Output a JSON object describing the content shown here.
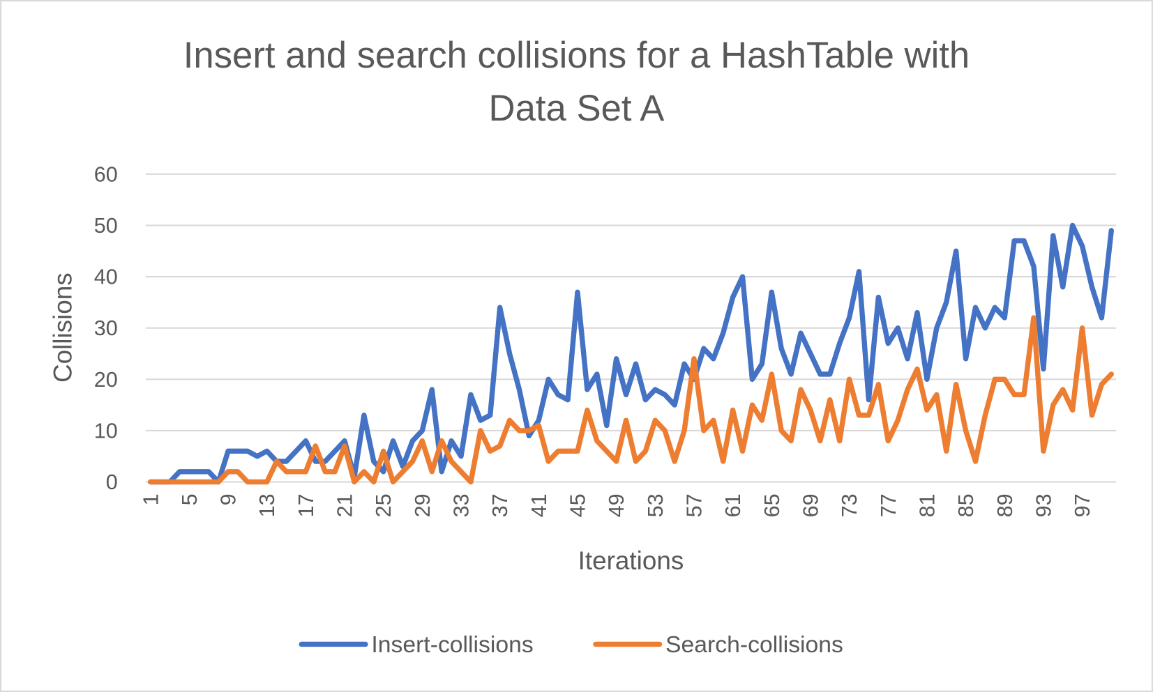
{
  "chart_data": {
    "type": "line",
    "title": [
      "Insert and search collisions for a HashTable with",
      "Data Set A"
    ],
    "x_label": "Iterations",
    "y_label": "Collisions",
    "categories": [
      "1",
      null,
      null,
      null,
      "5",
      null,
      null,
      null,
      "9",
      null,
      null,
      null,
      "13",
      null,
      null,
      null,
      "17",
      null,
      null,
      null,
      "21",
      null,
      null,
      null,
      "25",
      null,
      null,
      null,
      "29",
      null,
      null,
      null,
      "33",
      null,
      null,
      null,
      "37",
      null,
      null,
      null,
      "41",
      null,
      null,
      null,
      "45",
      null,
      null,
      null,
      "49",
      null,
      null,
      null,
      "53",
      null,
      null,
      null,
      "57",
      null,
      null,
      null,
      "61",
      null,
      null,
      null,
      "65",
      null,
      null,
      null,
      "69",
      null,
      null,
      null,
      "73",
      null,
      null,
      null,
      "77",
      null,
      null,
      null,
      "81",
      null,
      null,
      null,
      "85",
      null,
      null,
      null,
      "89",
      null,
      null,
      null,
      "93",
      null,
      null,
      null,
      "97",
      null,
      null,
      null
    ],
    "series": [
      {
        "name": "Insert-collisions",
        "color": "#4472c4",
        "values": [
          0,
          0,
          0,
          2,
          2,
          2,
          2,
          0,
          6,
          6,
          6,
          5,
          6,
          4,
          4,
          6,
          8,
          4,
          4,
          6,
          8,
          1,
          13,
          4,
          2,
          8,
          3,
          8,
          10,
          18,
          2,
          8,
          5,
          17,
          12,
          13,
          34,
          25,
          18,
          9,
          12,
          20,
          17,
          16,
          37,
          18,
          21,
          11,
          24,
          17,
          23,
          16,
          18,
          17,
          15,
          23,
          20,
          26,
          24,
          29,
          36,
          40,
          20,
          23,
          37,
          26,
          21,
          29,
          25,
          21,
          21,
          27,
          32,
          41,
          16,
          36,
          27,
          30,
          24,
          33,
          20,
          30,
          35,
          45,
          24,
          34,
          30,
          34,
          32,
          47,
          47,
          42,
          22,
          48,
          38,
          50,
          46,
          38,
          32,
          49
        ]
      },
      {
        "name": "Search-collisions",
        "color": "#ed7d31",
        "values": [
          0,
          0,
          0,
          0,
          0,
          0,
          0,
          0,
          2,
          2,
          0,
          0,
          0,
          4,
          2,
          2,
          2,
          7,
          2,
          2,
          7,
          0,
          2,
          0,
          6,
          0,
          2,
          4,
          8,
          2,
          8,
          4,
          2,
          0,
          10,
          6,
          7,
          12,
          10,
          10,
          11,
          4,
          6,
          6,
          6,
          14,
          8,
          6,
          4,
          12,
          4,
          6,
          12,
          10,
          4,
          10,
          24,
          10,
          12,
          4,
          14,
          6,
          15,
          12,
          21,
          10,
          8,
          18,
          14,
          8,
          16,
          8,
          20,
          13,
          13,
          19,
          8,
          12,
          18,
          22,
          14,
          17,
          6,
          19,
          10,
          4,
          13,
          20,
          20,
          17,
          17,
          32,
          6,
          15,
          18,
          14,
          30,
          13,
          19,
          21
        ]
      }
    ],
    "ylim": [
      0,
      60
    ],
    "yticks": [
      0,
      10,
      20,
      30,
      40,
      50,
      60
    ],
    "grid": true,
    "legend": "bottom"
  }
}
